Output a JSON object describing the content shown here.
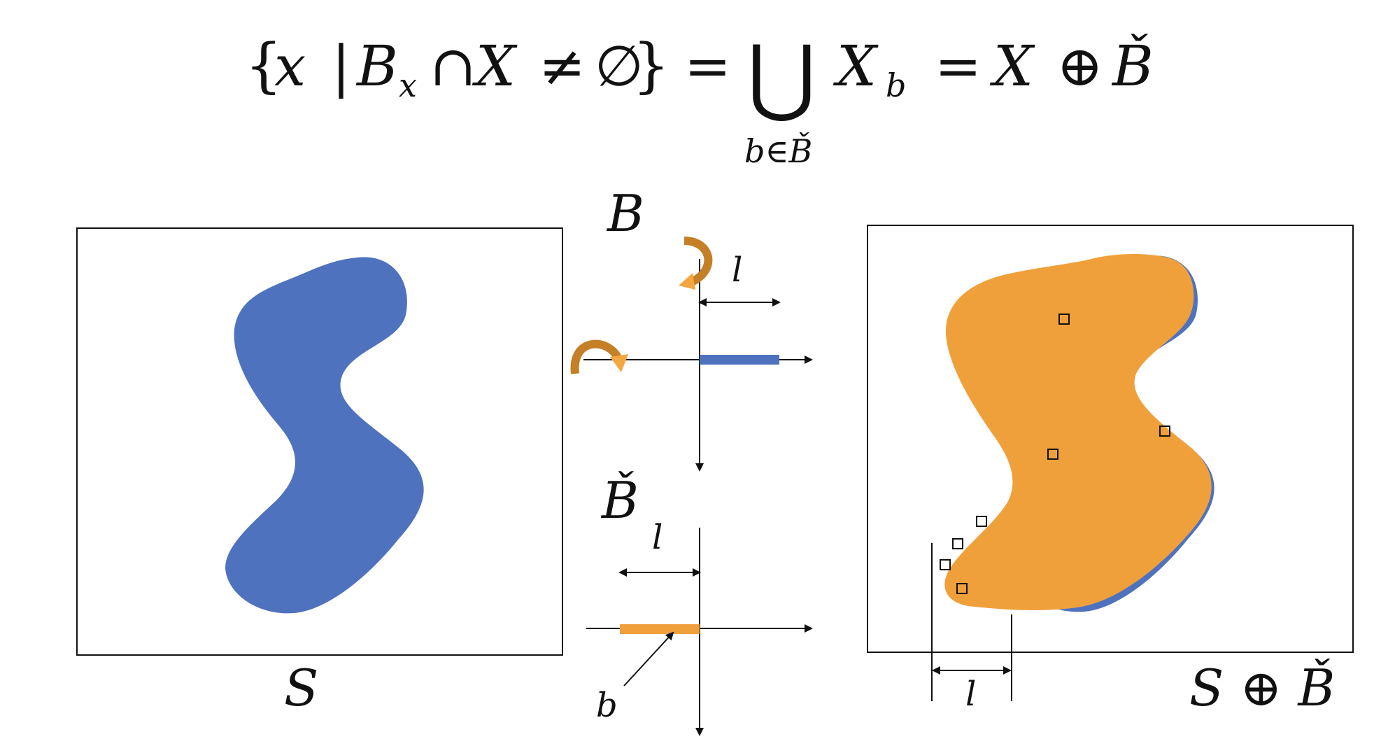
{
  "formula": {
    "lhs_open": "{",
    "lhs_x": "x",
    "lhs_bar": "|",
    "lhs_B": "B",
    "lhs_sub_x": "x",
    "lhs_cap": "∩",
    "lhs_X": "X",
    "lhs_ne": "≠",
    "lhs_empty": "∅",
    "lhs_close": "}",
    "eq1": "=",
    "union": "⋃",
    "union_sub": "b∈B̌",
    "term_X": "X",
    "term_sub_b": "b",
    "eq2": "=",
    "rhs_X": "X",
    "rhs_oplus": "⊕",
    "rhs_Bcheck": "B̌"
  },
  "labels": {
    "left_panel_caption": "S",
    "right_panel_caption": "S ⊕ B̌",
    "element_B": "B",
    "element_B_check": "B̌",
    "length_top": "l",
    "length_bottom": "l",
    "length_right": "l",
    "point_b": "b"
  },
  "colors": {
    "shape_blue": "#4f72be",
    "shape_orange": "#f0a03a",
    "arrow_orange_dark": "#c57f27",
    "arrow_orange_light": "#f4a640",
    "line": "#111111"
  },
  "icons": {
    "rotate_top": "curved-rotation-arrow-icon",
    "rotate_left": "curved-rotation-arrow-icon"
  }
}
